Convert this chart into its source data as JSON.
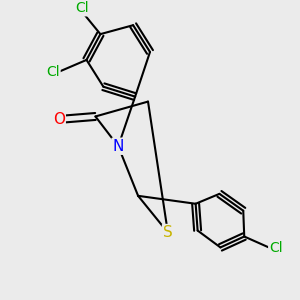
{
  "background_color": "#ebebeb",
  "atom_colors": {
    "S": "#c8b400",
    "N": "#0000ff",
    "O": "#ff0000",
    "Cl": "#00aa00",
    "C": "#000000"
  },
  "bond_color": "#000000",
  "bond_width": 1.5,
  "figsize": [
    3.0,
    3.0
  ],
  "dpi": 100
}
